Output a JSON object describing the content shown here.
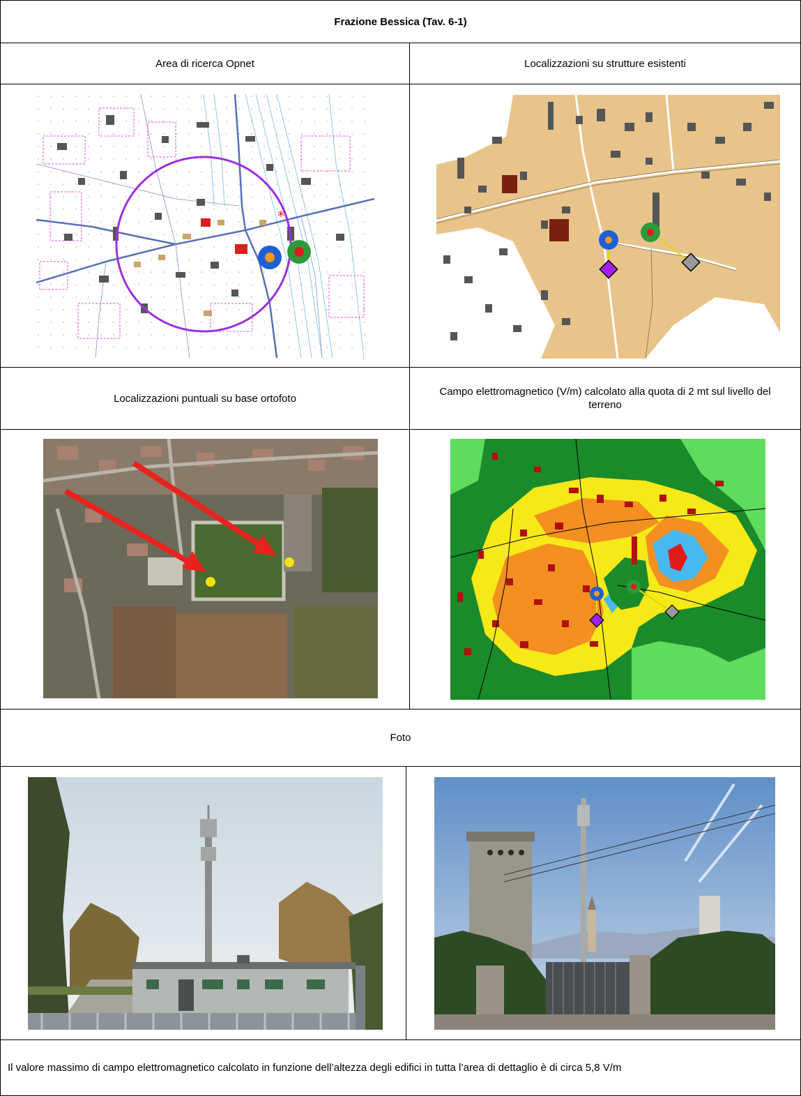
{
  "document": {
    "title": "Frazione Bessica (Tav. 6-1)",
    "panels": {
      "opnet_area": "Area di ricerca Opnet",
      "existing_structures": "Localizzazioni su strutture esistenti",
      "orthophoto": "Localizzazioni puntuali su base ortofoto",
      "em_field": "Campo elettromagnetico (V/m) calcolato alla quota di 2 mt sul livello del terreno"
    },
    "photos_header": "Foto",
    "conclusion": "Il valore massimo di campo elettromagnetico calcolato in funzione dell’altezza degli edifici in tutta l’area di dettaglio è di circa 5,8 V/m"
  },
  "colors": {
    "search_circle": "#9b30d9",
    "site_blue": "#1f5fd6",
    "site_orange": "#f39a1a",
    "site_green": "#2e9a3c",
    "site_red": "#e01b1b",
    "marker_purple": "#a020f0",
    "marker_gray": "#999999",
    "arrow_red": "#e8231e",
    "point_yellow": "#f5e10a",
    "buildings_tan": "#e8c48a"
  }
}
